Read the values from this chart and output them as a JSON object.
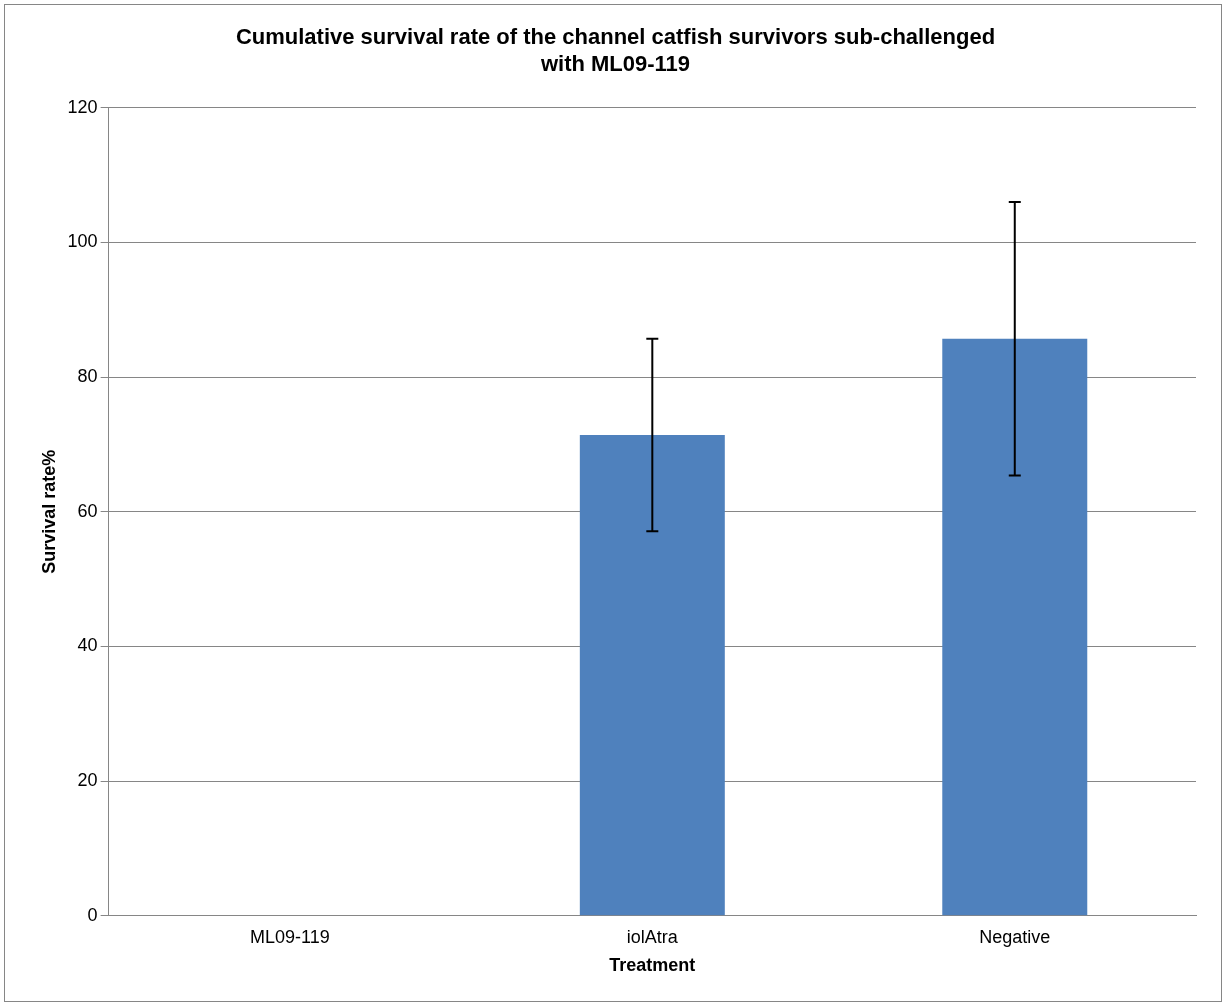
{
  "chart_data": {
    "type": "bar",
    "title": "Cumulative survival rate of the channel catfish survivors sub-challenged with ML09-119",
    "xlabel": "Treatment",
    "ylabel": "Survival rate%",
    "categories": [
      "ML09-119",
      "iolAtra",
      "Negative"
    ],
    "values": [
      0,
      71.4,
      85.7
    ],
    "errors": [
      null,
      14.3,
      20.3
    ],
    "color": "#4f81bd",
    "ylim": [
      0,
      120
    ],
    "yticks": [
      0,
      20,
      40,
      60,
      80,
      100,
      120
    ],
    "grid": "y",
    "legend": false
  }
}
